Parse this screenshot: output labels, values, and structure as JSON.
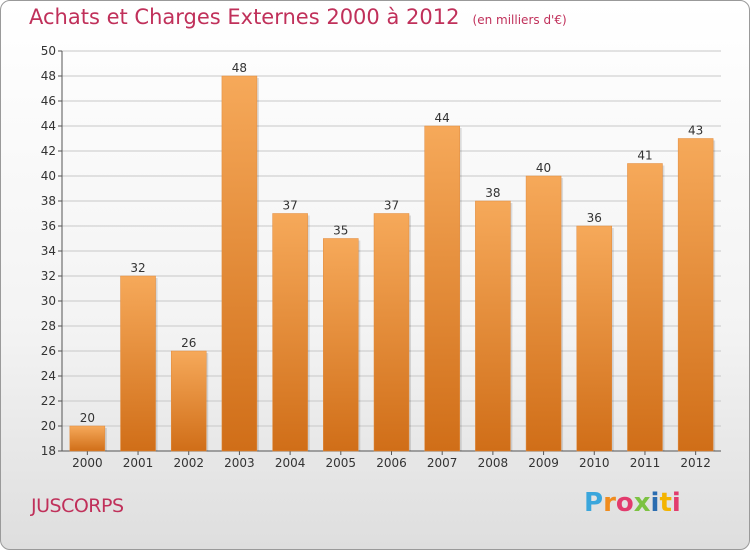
{
  "header": {
    "title": "Achats et Charges Externes 2000 à 2012",
    "unit": "(en milliers d'€)"
  },
  "place": "JUSCORPS",
  "brand": {
    "text": "Proxiti",
    "letters": [
      "P",
      "r",
      "o",
      "x",
      "i",
      "t",
      "i"
    ],
    "letter_colors": [
      "#3aa6dc",
      "#f08c1e",
      "#e23b6d",
      "#7cc242",
      "#2b6db0",
      "#f4b400",
      "#e23b6d"
    ]
  },
  "colors": {
    "bar_top": "#f6a95a",
    "bar_bottom": "#d06e18",
    "text": "#c0305a",
    "grid": "#c8c8c8"
  },
  "chart_data": {
    "type": "bar",
    "categories": [
      "2000",
      "2001",
      "2002",
      "2003",
      "2004",
      "2005",
      "2006",
      "2007",
      "2008",
      "2009",
      "2010",
      "2011",
      "2012"
    ],
    "values": [
      20,
      32,
      26,
      48,
      37,
      35,
      37,
      44,
      38,
      40,
      36,
      41,
      43
    ],
    "ylim": [
      18,
      50
    ],
    "yticks": [
      18,
      20,
      22,
      24,
      26,
      28,
      30,
      32,
      34,
      36,
      38,
      40,
      42,
      44,
      46,
      48,
      50
    ],
    "grid": true,
    "xlabel": "",
    "ylabel": ""
  }
}
